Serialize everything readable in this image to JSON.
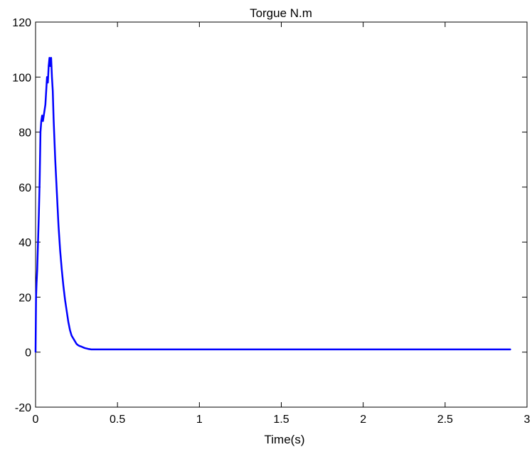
{
  "chart_data": {
    "type": "line",
    "title": "Torgue N.m",
    "xlabel": "Time(s)",
    "ylabel": "",
    "xlim": [
      0,
      3
    ],
    "ylim": [
      -20,
      120
    ],
    "x_ticks": [
      0,
      0.5,
      1,
      1.5,
      2,
      2.5,
      3
    ],
    "x_tick_labels": [
      "0",
      "0.5",
      "1",
      "1.5",
      "2",
      "2.5",
      "3"
    ],
    "y_ticks": [
      -20,
      0,
      20,
      40,
      60,
      80,
      100,
      120
    ],
    "y_tick_labels": [
      "-20",
      "0",
      "20",
      "40",
      "60",
      "80",
      "100",
      "120"
    ],
    "grid": false,
    "legend": "none",
    "line_color": "#0000ff",
    "series": [
      {
        "x": [
          0,
          0.003,
          0.006,
          0.01,
          0.015,
          0.02,
          0.025,
          0.03,
          0.035,
          0.04,
          0.045,
          0.05,
          0.06,
          0.065,
          0.07,
          0.075,
          0.08,
          0.085,
          0.09,
          0.095,
          0.1,
          0.105,
          0.11,
          0.12,
          0.13,
          0.14,
          0.15,
          0.16,
          0.17,
          0.18,
          0.19,
          0.2,
          0.21,
          0.22,
          0.23,
          0.24,
          0.25,
          0.26,
          0.27,
          0.28,
          0.3,
          0.32,
          0.34,
          0.36,
          0.4,
          0.5,
          1,
          1.5,
          2,
          2.5,
          2.9
        ],
        "y": [
          0,
          20,
          25,
          30,
          40,
          50,
          62,
          80,
          84,
          86,
          84,
          86,
          90,
          95,
          100,
          98,
          104,
          107,
          104,
          107,
          100,
          95,
          85,
          70,
          58,
          46,
          37,
          30,
          24,
          19,
          15,
          11,
          8,
          6,
          5,
          4,
          3,
          2.5,
          2.2,
          2,
          1.5,
          1.2,
          1,
          1,
          1,
          1,
          1,
          1,
          1,
          1,
          1
        ]
      }
    ]
  }
}
